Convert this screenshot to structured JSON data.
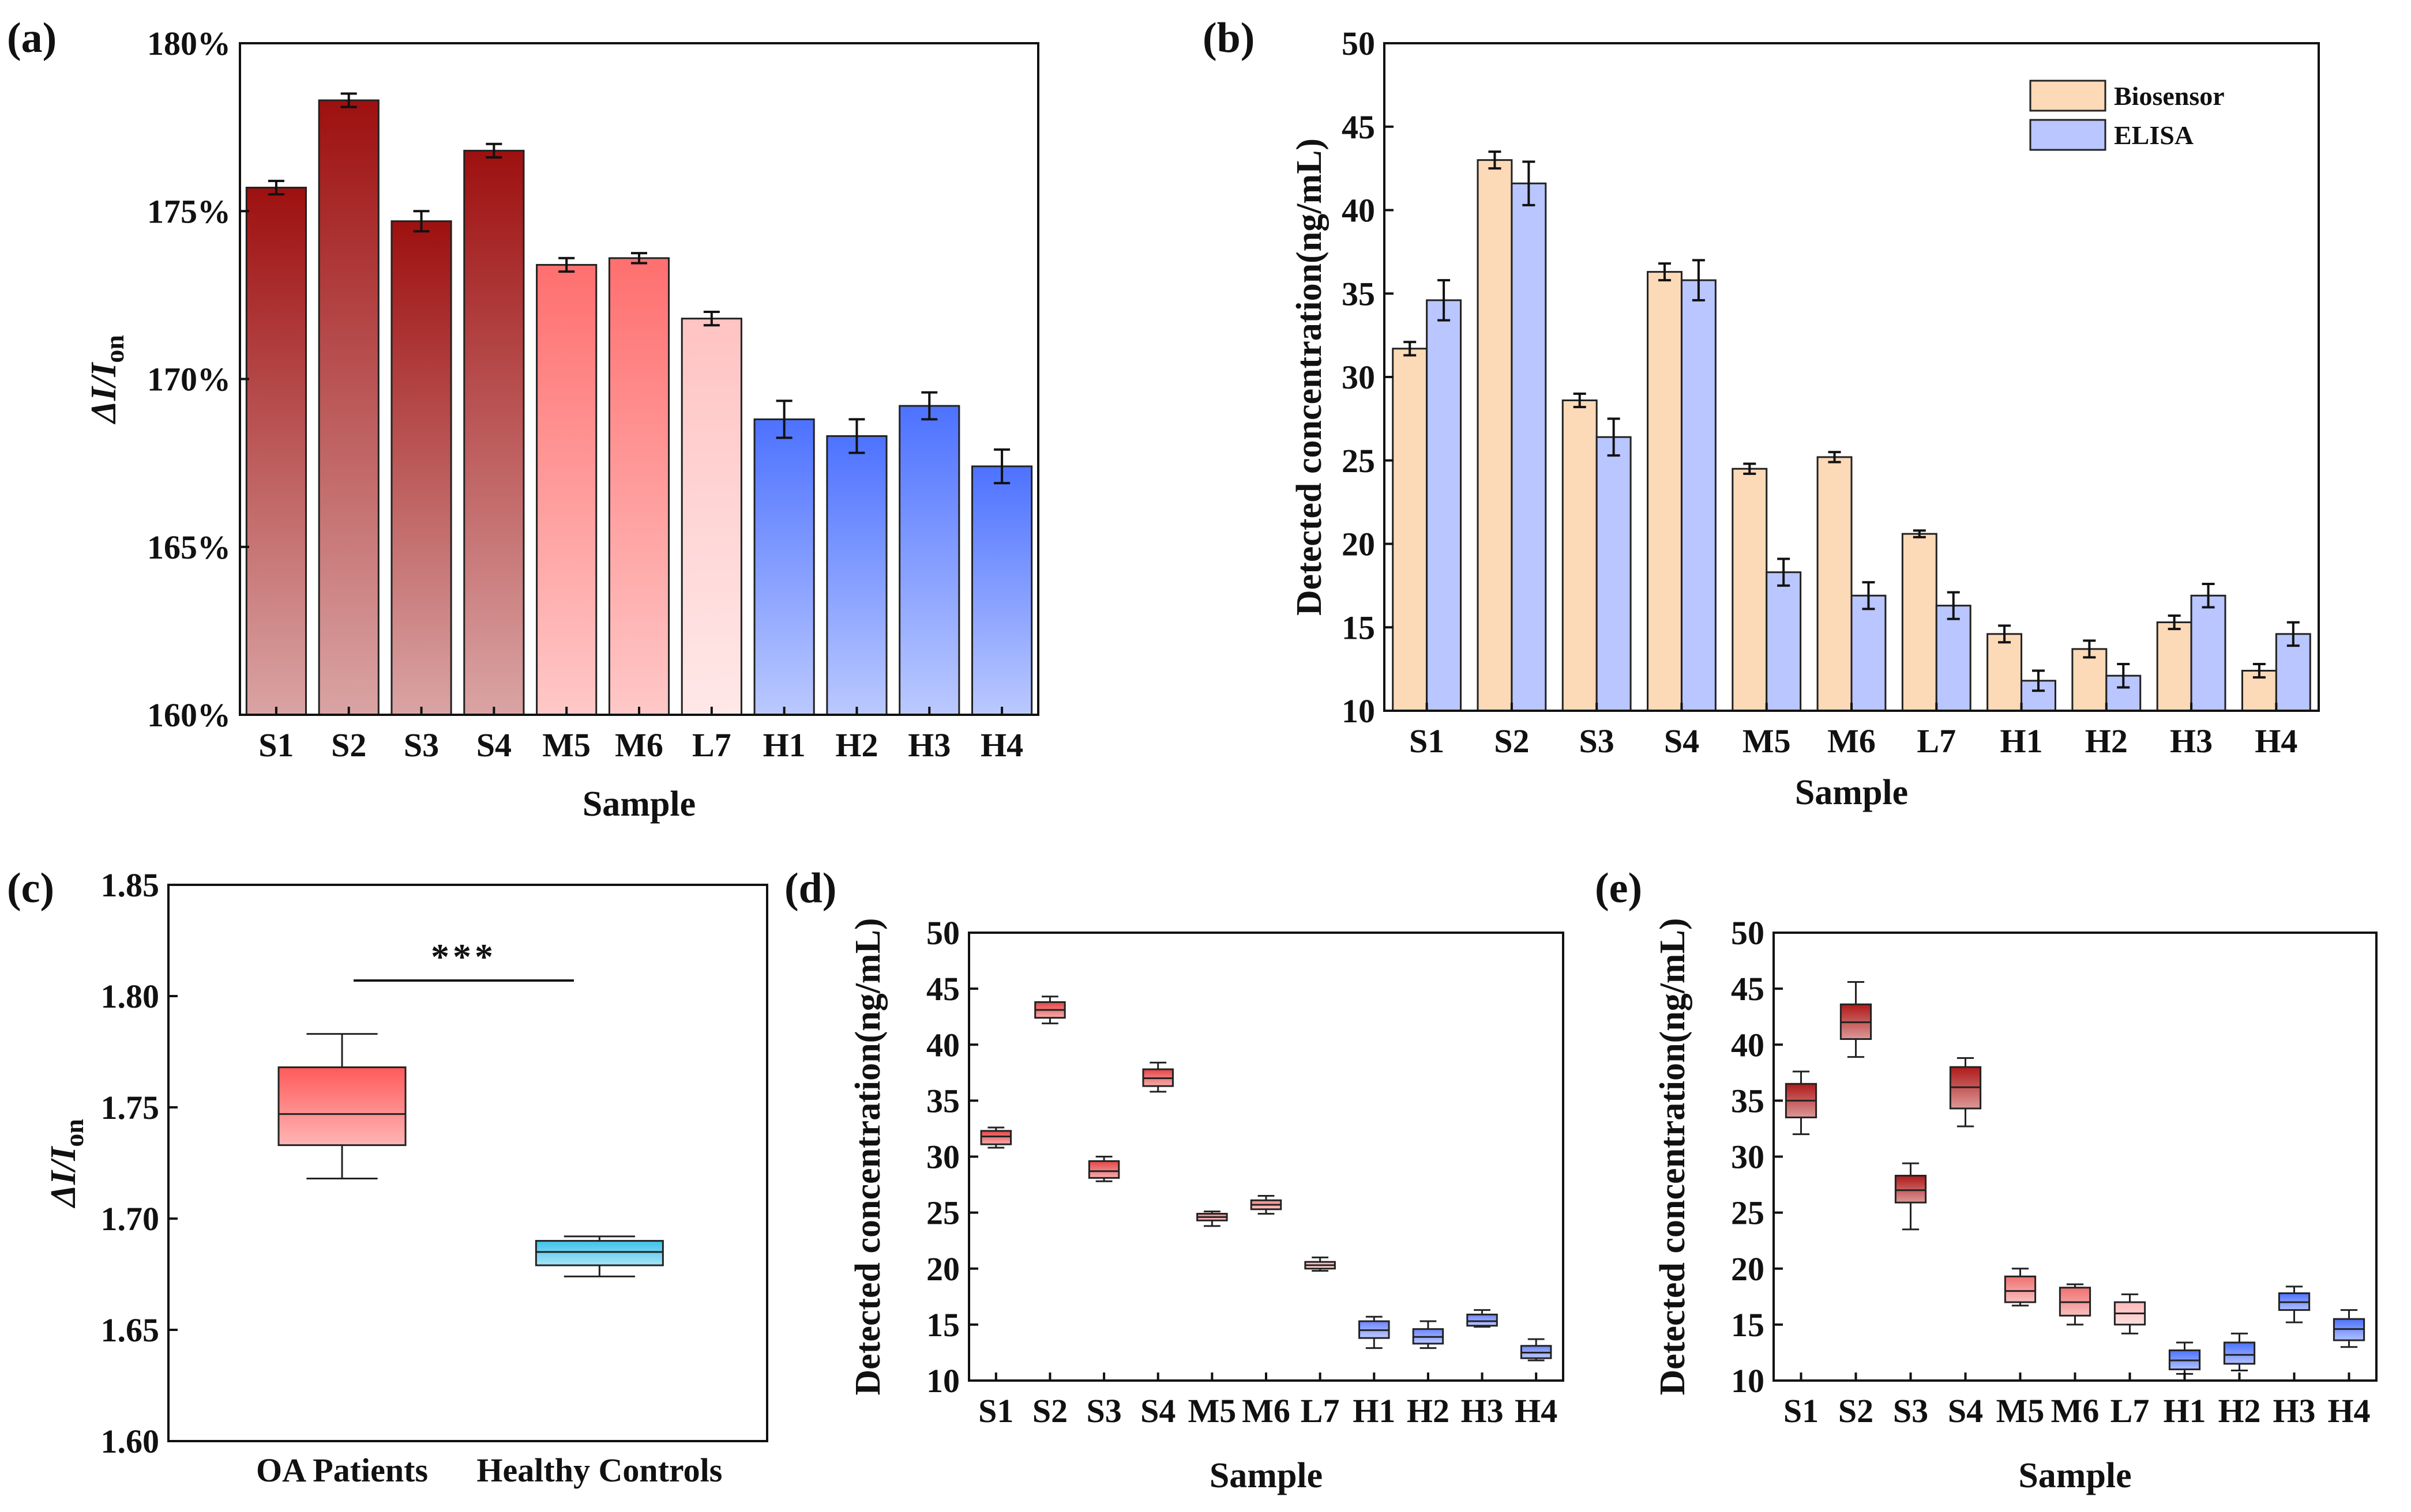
{
  "chart_data": [
    {
      "panel": "(a)",
      "type": "bar",
      "categories": [
        "S1",
        "S2",
        "S3",
        "S4",
        "M5",
        "M6",
        "L7",
        "H1",
        "H2",
        "H3",
        "H4"
      ],
      "values": [
        175.7,
        178.3,
        174.7,
        176.8,
        173.4,
        173.6,
        171.8,
        168.8,
        168.3,
        169.2,
        167.4
      ],
      "errors": [
        0.2,
        0.2,
        0.3,
        0.2,
        0.2,
        0.15,
        0.2,
        0.55,
        0.5,
        0.4,
        0.5
      ],
      "group_colors": [
        "#9e1010",
        "#9e1010",
        "#9e1010",
        "#9e1010",
        "#ff6f6f",
        "#ff6f6f",
        "#ffc3c3",
        "#4d72ff",
        "#4d72ff",
        "#4d72ff",
        "#4d72ff"
      ],
      "xlabel": "Sample",
      "ylabel": "ΔI/Ion",
      "ylabel_main": "ΔI/I",
      "ylabel_sub": "on",
      "ylim": [
        160,
        180
      ],
      "yticks": [
        160,
        165,
        170,
        175,
        180
      ],
      "ytick_labels": [
        "160%",
        "165%",
        "170%",
        "175%",
        "180%"
      ]
    },
    {
      "panel": "(b)",
      "type": "bar",
      "categories": [
        "S1",
        "S2",
        "S3",
        "S4",
        "M5",
        "M6",
        "L7",
        "H1",
        "H2",
        "H3",
        "H4"
      ],
      "series": [
        {
          "name": "Biosensor",
          "values": [
            31.7,
            43.0,
            28.6,
            36.3,
            24.5,
            25.2,
            20.6,
            14.6,
            13.7,
            15.3,
            12.4
          ],
          "errors": [
            0.4,
            0.5,
            0.4,
            0.5,
            0.3,
            0.3,
            0.2,
            0.5,
            0.5,
            0.4,
            0.4
          ],
          "color": "#fcd9b7"
        },
        {
          "name": "ELISA",
          "values": [
            34.6,
            41.6,
            26.4,
            35.8,
            18.3,
            16.9,
            16.3,
            11.8,
            12.1,
            16.9,
            14.6
          ],
          "errors": [
            1.2,
            1.3,
            1.1,
            1.2,
            0.8,
            0.8,
            0.8,
            0.6,
            0.7,
            0.7,
            0.7
          ],
          "color": "#b9c6ff"
        }
      ],
      "legend_position": "top-right",
      "xlabel": "Sample",
      "ylabel": "Detected concentration(ng/mL)",
      "ylim": [
        10,
        50
      ],
      "yticks": [
        10,
        15,
        20,
        25,
        30,
        35,
        40,
        45,
        50
      ]
    },
    {
      "panel": "(c)",
      "type": "box",
      "categories": [
        "OA Patients",
        "Healthy Controls"
      ],
      "boxes": [
        {
          "whisker_low": 1.718,
          "q1": 1.733,
          "median": 1.747,
          "q3": 1.768,
          "whisker_high": 1.783,
          "color": "#ff5a5a"
        },
        {
          "whisker_low": 1.674,
          "q1": 1.679,
          "median": 1.685,
          "q3": 1.69,
          "whisker_high": 1.692,
          "color": "#3ec3ea"
        }
      ],
      "significance": "***",
      "ylabel": "ΔI/Ion",
      "ylabel_main": "ΔI/I",
      "ylabel_sub": "on",
      "ylim": [
        1.6,
        1.85
      ],
      "yticks": [
        1.6,
        1.65,
        1.7,
        1.75,
        1.8,
        1.85
      ],
      "ytick_labels": [
        "1.60",
        "1.65",
        "1.70",
        "1.75",
        "1.80",
        "1.85"
      ]
    },
    {
      "panel": "(d)",
      "type": "box",
      "categories": [
        "S1",
        "S2",
        "S3",
        "S4",
        "M5",
        "M6",
        "L7",
        "H1",
        "H2",
        "H3",
        "H4"
      ],
      "boxes": [
        {
          "whisker_low": 30.8,
          "q1": 31.1,
          "median": 31.8,
          "q3": 32.3,
          "whisker_high": 32.6
        },
        {
          "whisker_low": 41.9,
          "q1": 42.4,
          "median": 43.1,
          "q3": 43.8,
          "whisker_high": 44.3
        },
        {
          "whisker_low": 27.8,
          "q1": 28.1,
          "median": 28.7,
          "q3": 29.6,
          "whisker_high": 30.0
        },
        {
          "whisker_low": 35.8,
          "q1": 36.3,
          "median": 37.0,
          "q3": 37.8,
          "whisker_high": 38.4
        },
        {
          "whisker_low": 23.8,
          "q1": 24.3,
          "median": 24.6,
          "q3": 24.9,
          "whisker_high": 25.1
        },
        {
          "whisker_low": 24.9,
          "q1": 25.3,
          "median": 25.7,
          "q3": 26.1,
          "whisker_high": 26.5
        },
        {
          "whisker_low": 19.8,
          "q1": 20.0,
          "median": 20.3,
          "q3": 20.6,
          "whisker_high": 21.0
        },
        {
          "whisker_low": 12.9,
          "q1": 13.8,
          "median": 14.5,
          "q3": 15.3,
          "whisker_high": 15.7
        },
        {
          "whisker_low": 12.9,
          "q1": 13.3,
          "median": 13.9,
          "q3": 14.6,
          "whisker_high": 15.3
        },
        {
          "whisker_low": 14.8,
          "q1": 14.9,
          "median": 15.3,
          "q3": 15.9,
          "whisker_high": 16.3
        },
        {
          "whisker_low": 11.8,
          "q1": 12.0,
          "median": 12.5,
          "q3": 13.1,
          "whisker_high": 13.7
        }
      ],
      "group_colors": [
        "#e64646",
        "#e64646",
        "#e64646",
        "#e64646",
        "#ff8484",
        "#ff8484",
        "#ffb4b4",
        "#6d86ff",
        "#6d86ff",
        "#6d86ff",
        "#6d86ff"
      ],
      "xlabel": "Sample",
      "ylabel": "Detected concentration(ng/mL)",
      "ylim": [
        10,
        50
      ],
      "yticks": [
        10,
        15,
        20,
        25,
        30,
        35,
        40,
        45,
        50
      ]
    },
    {
      "panel": "(e)",
      "type": "box",
      "categories": [
        "S1",
        "S2",
        "S3",
        "S4",
        "M5",
        "M6",
        "L7",
        "H1",
        "H2",
        "H3",
        "H4"
      ],
      "boxes": [
        {
          "whisker_low": 32.0,
          "q1": 33.5,
          "median": 35.0,
          "q3": 36.5,
          "whisker_high": 37.6
        },
        {
          "whisker_low": 38.9,
          "q1": 40.5,
          "median": 42.0,
          "q3": 43.6,
          "whisker_high": 45.6
        },
        {
          "whisker_low": 23.5,
          "q1": 25.9,
          "median": 27.0,
          "q3": 28.3,
          "whisker_high": 29.4
        },
        {
          "whisker_low": 32.7,
          "q1": 34.3,
          "median": 36.2,
          "q3": 38.0,
          "whisker_high": 38.8
        },
        {
          "whisker_low": 16.7,
          "q1": 17.0,
          "median": 18.0,
          "q3": 19.3,
          "whisker_high": 20.0
        },
        {
          "whisker_low": 15.0,
          "q1": 15.8,
          "median": 17.0,
          "q3": 18.3,
          "whisker_high": 18.6
        },
        {
          "whisker_low": 14.2,
          "q1": 15.0,
          "median": 16.0,
          "q3": 17.0,
          "whisker_high": 17.7
        },
        {
          "whisker_low": 10.6,
          "q1": 11.0,
          "median": 11.8,
          "q3": 12.7,
          "whisker_high": 13.4
        },
        {
          "whisker_low": 10.9,
          "q1": 11.5,
          "median": 12.3,
          "q3": 13.4,
          "whisker_high": 14.2
        },
        {
          "whisker_low": 15.2,
          "q1": 16.3,
          "median": 17.0,
          "q3": 17.8,
          "whisker_high": 18.4
        },
        {
          "whisker_low": 13.0,
          "q1": 13.6,
          "median": 14.6,
          "q3": 15.5,
          "whisker_high": 16.3
        }
      ],
      "group_colors": [
        "#b01a1a",
        "#b01a1a",
        "#b01a1a",
        "#b01a1a",
        "#f07070",
        "#f07070",
        "#ffb8b8",
        "#4d72ff",
        "#4d72ff",
        "#4d72ff",
        "#4d72ff"
      ],
      "xlabel": "Sample",
      "ylabel": "Detected concentration(ng/mL)",
      "ylim": [
        10,
        50
      ],
      "yticks": [
        10,
        15,
        20,
        25,
        30,
        35,
        40,
        45,
        50
      ]
    }
  ]
}
